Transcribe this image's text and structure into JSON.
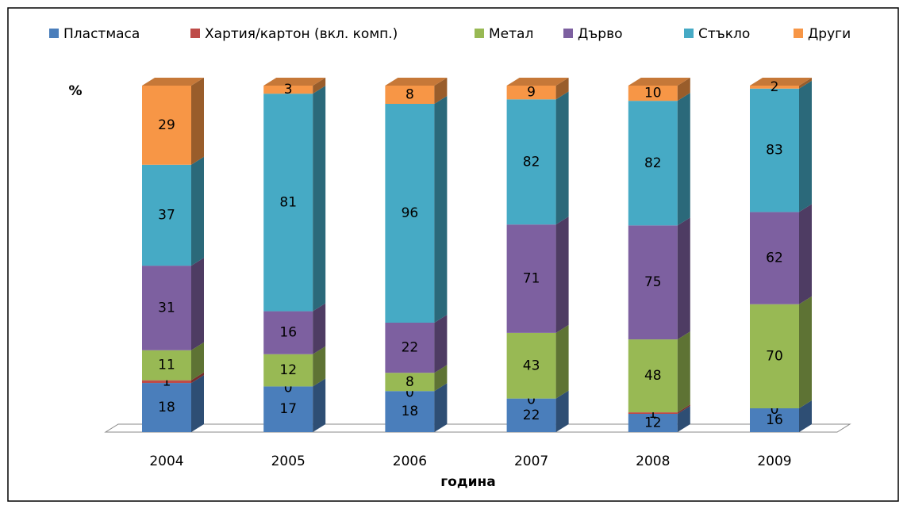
{
  "chart_data": {
    "type": "bar",
    "stacking": "percent",
    "y_label": "%",
    "x_label": "година",
    "categories": [
      "2004",
      "2005",
      "2006",
      "2007",
      "2008",
      "2009"
    ],
    "series": [
      {
        "name": "Пластмаса",
        "color": "#4a7ebb",
        "values": [
          18,
          17,
          18,
          22,
          12,
          16
        ]
      },
      {
        "name": "Хартия/картон (вкл. комп.)",
        "color": "#be4b48",
        "values": [
          1,
          0,
          0,
          0,
          1,
          0
        ]
      },
      {
        "name": "Метал",
        "color": "#98b954",
        "values": [
          11,
          12,
          8,
          43,
          48,
          70
        ]
      },
      {
        "name": "Дърво",
        "color": "#7d60a0",
        "values": [
          31,
          16,
          22,
          71,
          75,
          62
        ]
      },
      {
        "name": "Стъкло",
        "color": "#46aac5",
        "values": [
          37,
          81,
          96,
          82,
          82,
          83
        ]
      },
      {
        "name": "Други",
        "color": "#f79646",
        "values": [
          29,
          3,
          8,
          9,
          10,
          2
        ]
      }
    ]
  }
}
